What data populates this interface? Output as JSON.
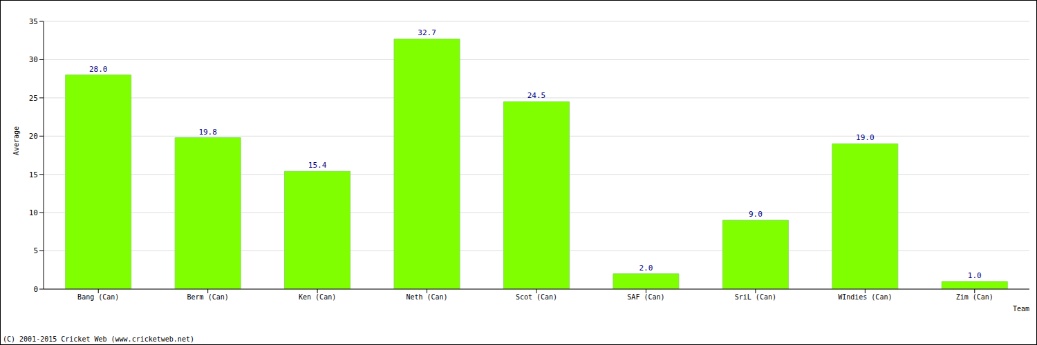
{
  "chart_data": {
    "type": "bar",
    "categories": [
      "Bang (Can)",
      "Berm (Can)",
      "Ken (Can)",
      "Neth (Can)",
      "Scot (Can)",
      "SAF (Can)",
      "SriL (Can)",
      "WIndies (Can)",
      "Zim (Can)"
    ],
    "values": [
      28.0,
      19.8,
      15.4,
      32.7,
      24.5,
      2.0,
      9.0,
      19.0,
      1.0
    ],
    "value_labels": [
      "28.0",
      "19.8",
      "15.4",
      "32.7",
      "24.5",
      "2.0",
      "9.0",
      "19.0",
      "1.0"
    ],
    "color": "#7fff00",
    "ylim": [
      0,
      35
    ],
    "yticks": [
      0,
      5,
      10,
      15,
      20,
      25,
      30,
      35
    ],
    "grid": true,
    "data_labels": true,
    "y_label": "Average",
    "x_label": "Team",
    "annotations": [
      "(C) 2001-2015 Cricket Web (www.cricketweb.net)"
    ]
  }
}
